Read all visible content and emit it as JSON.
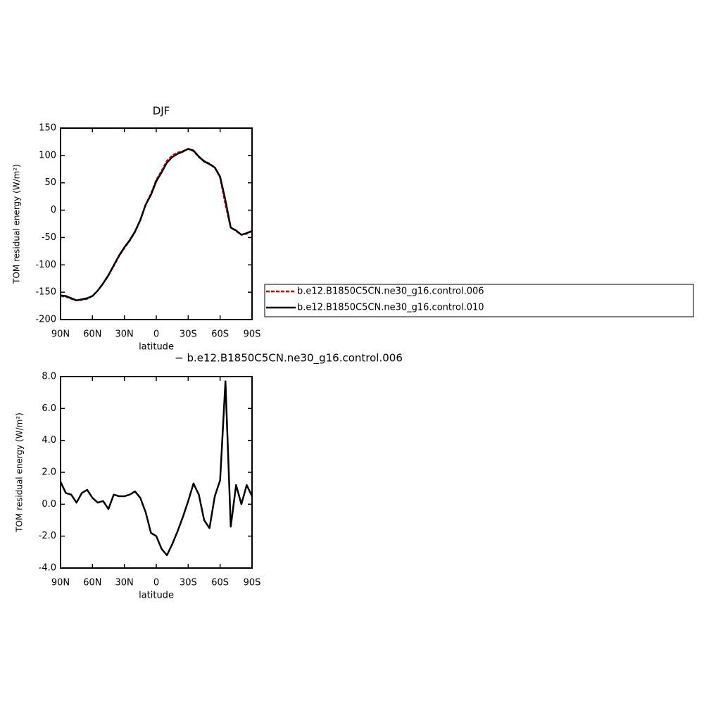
{
  "chart_data": [
    {
      "type": "line",
      "title": "DJF",
      "xlabel": "latitude",
      "ylabel": "TOM residual energy (W/m²)",
      "x": [
        90,
        85,
        80,
        75,
        70,
        65,
        60,
        55,
        50,
        45,
        40,
        35,
        30,
        25,
        20,
        15,
        10,
        5,
        0,
        -5,
        -10,
        -15,
        -20,
        -25,
        -30,
        -35,
        -40,
        -45,
        -50,
        -55,
        -60,
        -65,
        -70,
        -75,
        -80,
        -85,
        -90
      ],
      "series": [
        {
          "name": "b.e12.B1850C5CN.ne30_g16.control.006",
          "color": "#e00000",
          "dash": true,
          "values": [
            -157,
            -158,
            -162,
            -165,
            -164,
            -162,
            -157,
            -147,
            -134,
            -119,
            -102,
            -84,
            -69,
            -56,
            -40,
            -18,
            10,
            30,
            55,
            72,
            90,
            100,
            105,
            108,
            112,
            108,
            97,
            90,
            85,
            78,
            60,
            10,
            -32,
            -38,
            -45,
            -43,
            -38
          ]
        },
        {
          "name": "b.e12.B1850C5CN.ne30_g16.control.010",
          "color": "#000000",
          "dash": false,
          "values": [
            -156,
            -157,
            -161,
            -165,
            -163,
            -161,
            -157,
            -147,
            -134,
            -119,
            -101,
            -83,
            -68,
            -55,
            -39,
            -18,
            10,
            28,
            53,
            69,
            87,
            97,
            103,
            107,
            112,
            109,
            98,
            89,
            84,
            78,
            61,
            18,
            -32,
            -37,
            -45,
            -42,
            -38
          ]
        }
      ],
      "xlim": [
        90,
        -90
      ],
      "xticks": [
        {
          "value": 90,
          "label": "90N"
        },
        {
          "value": 60,
          "label": "60N"
        },
        {
          "value": 30,
          "label": "30N"
        },
        0,
        {
          "value": -30,
          "label": "30S"
        },
        {
          "value": -60,
          "label": "60S"
        },
        {
          "value": -90,
          "label": "90S"
        }
      ],
      "ylim": [
        -200,
        150
      ],
      "yticks": [
        -200,
        -150,
        -100,
        -50,
        0,
        50,
        100,
        150
      ],
      "grid": false
    },
    {
      "type": "line",
      "title": "− b.e12.B1850C5CN.ne30_g16.control.006",
      "xlabel": "latitude",
      "ylabel": "TOM residual energy (W/m²)",
      "x": [
        90,
        85,
        80,
        75,
        70,
        65,
        60,
        55,
        50,
        45,
        40,
        35,
        30,
        25,
        20,
        15,
        10,
        5,
        0,
        -5,
        -10,
        -15,
        -20,
        -25,
        -30,
        -35,
        -40,
        -45,
        -50,
        -55,
        -60,
        -65,
        -70,
        -75,
        -80,
        -85,
        -90
      ],
      "color": "#000000",
      "values": [
        1.4,
        0.7,
        0.6,
        0.1,
        0.7,
        0.9,
        0.4,
        0.1,
        0.2,
        -0.3,
        0.6,
        0.5,
        0.5,
        0.6,
        0.8,
        0.4,
        -0.5,
        -1.8,
        -2.0,
        -2.8,
        -3.2,
        -2.5,
        -1.7,
        -0.8,
        0.2,
        1.3,
        0.6,
        -1.0,
        -1.5,
        0.5,
        1.5,
        7.7,
        -1.4,
        1.2,
        0.0,
        1.2,
        0.5
      ],
      "xlim": [
        90,
        -90
      ],
      "xticks": [
        {
          "value": 90,
          "label": "90N"
        },
        {
          "value": 60,
          "label": "60N"
        },
        {
          "value": 30,
          "label": "30N"
        },
        0,
        {
          "value": -30,
          "label": "30S"
        },
        {
          "value": -60,
          "label": "60S"
        },
        {
          "value": -90,
          "label": "90S"
        }
      ],
      "ylim": [
        -4,
        8
      ],
      "yticks": [
        {
          "value": -4,
          "label": "-4.0"
        },
        {
          "value": -2,
          "label": "-2.0"
        },
        {
          "value": 0,
          "label": "0.0"
        },
        {
          "value": 2,
          "label": "2.0"
        },
        {
          "value": 4,
          "label": "4.0"
        },
        {
          "value": 6,
          "label": "6.0"
        },
        {
          "value": 8,
          "label": "8.0"
        }
      ],
      "grid": false
    }
  ]
}
